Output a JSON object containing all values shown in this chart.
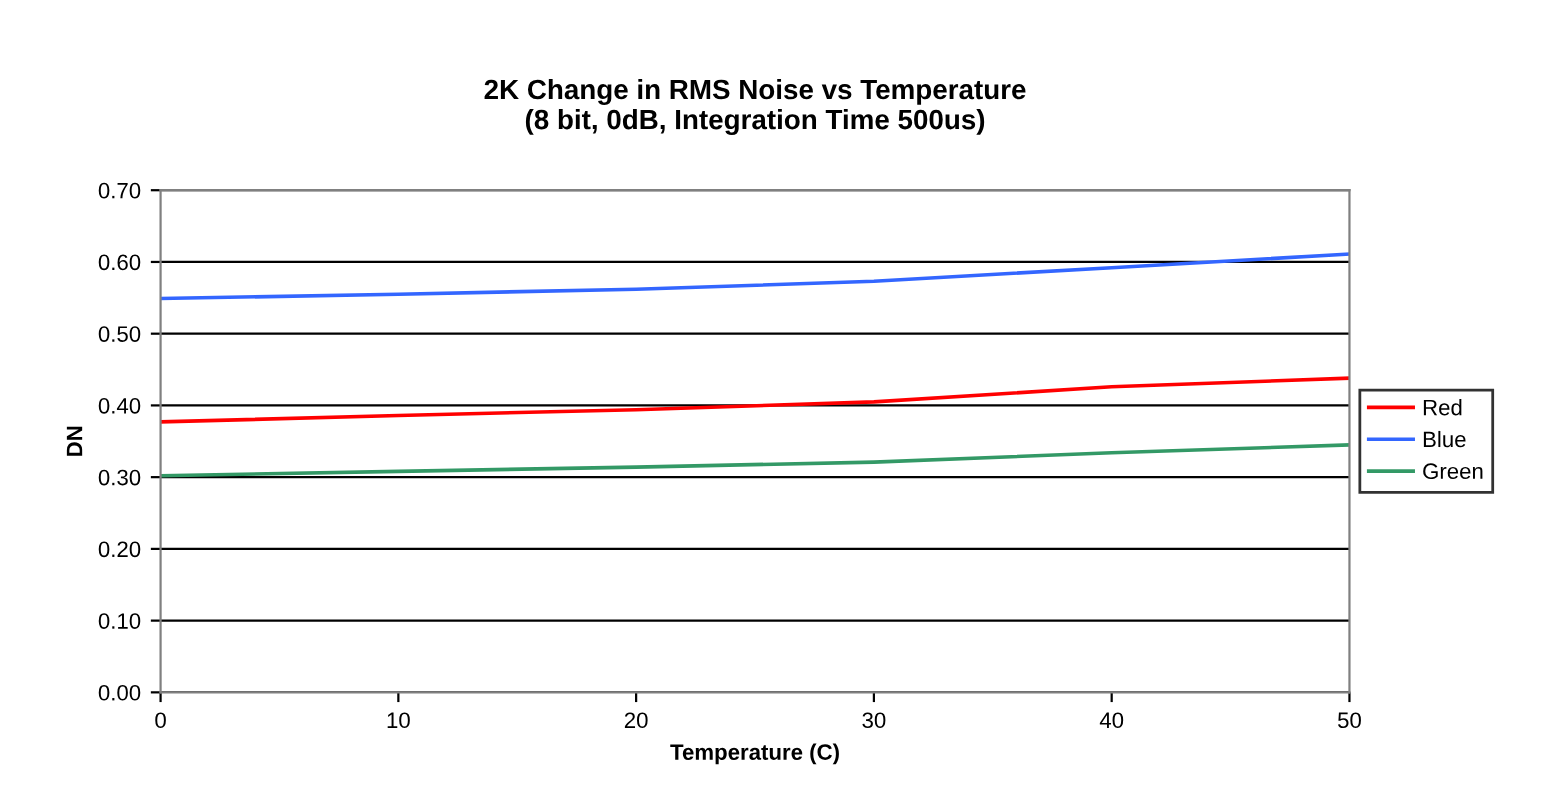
{
  "chart_data": {
    "type": "line",
    "title": "2K Change in RMS Noise vs Temperature\n(8 bit, 0dB, Integration Time 500us)",
    "xlabel": "Temperature (C)",
    "ylabel": "DN",
    "x": [
      0,
      10,
      20,
      30,
      40,
      50
    ],
    "series": [
      {
        "name": "Red",
        "color": "#ff0000",
        "values": [
          0.377,
          0.386,
          0.394,
          0.405,
          0.426,
          0.438
        ]
      },
      {
        "name": "Blue",
        "color": "#3366ff",
        "values": [
          0.549,
          0.555,
          0.562,
          0.573,
          0.592,
          0.611
        ]
      },
      {
        "name": "Green",
        "color": "#339966",
        "values": [
          0.302,
          0.308,
          0.314,
          0.321,
          0.334,
          0.345
        ]
      }
    ],
    "xlim": [
      0,
      50
    ],
    "xticks": [
      0,
      10,
      20,
      30,
      40,
      50
    ],
    "ylim": [
      0,
      0.7
    ],
    "yticks": [
      {
        "value": 0,
        "label": "0.00"
      },
      {
        "value": 0.1,
        "label": "0.10"
      },
      {
        "value": 0.2,
        "label": "0.20"
      },
      {
        "value": 0.3,
        "label": "0.30"
      },
      {
        "value": 0.4,
        "label": "0.40"
      },
      {
        "value": 0.5,
        "label": "0.50"
      },
      {
        "value": 0.6,
        "label": "0.60"
      },
      {
        "value": 0.7,
        "label": "0.70"
      }
    ],
    "grid": "y",
    "legend": "right",
    "marker": "none",
    "line_style": "solid"
  }
}
